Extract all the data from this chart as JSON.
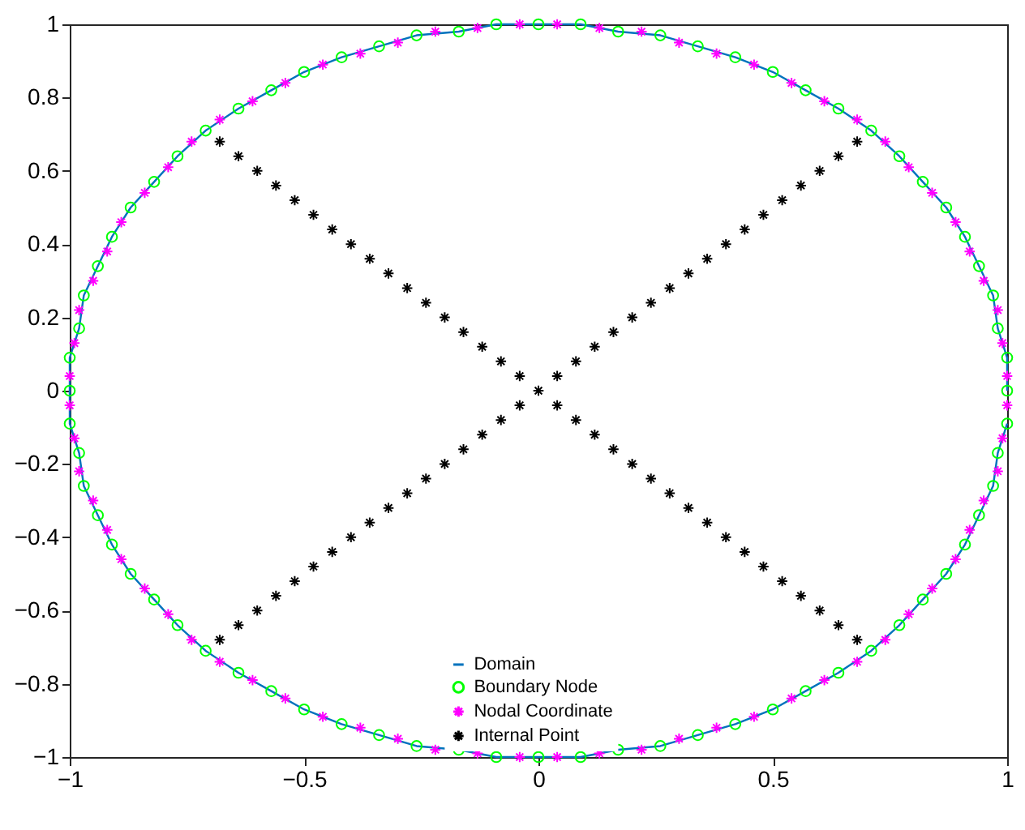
{
  "chart_data": {
    "type": "scatter",
    "xlim": [
      -1,
      1
    ],
    "ylim": [
      -1,
      1
    ],
    "xticks": [
      -1,
      -0.5,
      0,
      0.5,
      1
    ],
    "yticks": [
      -1,
      -0.8,
      -0.6,
      -0.4,
      -0.2,
      0,
      0.2,
      0.4,
      0.6,
      0.8,
      1
    ],
    "grid": false,
    "legend": "bottom",
    "series": [
      {
        "name": "Domain",
        "type": "line",
        "color": "#0072bd",
        "marker": "none",
        "x": [
          1,
          1,
          0.98,
          0.97,
          0.94,
          0.91,
          0.87,
          0.82,
          0.77,
          0.71,
          0.64,
          0.57,
          0.5,
          0.42,
          0.34,
          0.26,
          0.17,
          0.09,
          0,
          -0.09,
          -0.17,
          -0.26,
          -0.34,
          -0.42,
          -0.5,
          -0.57,
          -0.64,
          -0.71,
          -0.77,
          -0.82,
          -0.87,
          -0.91,
          -0.94,
          -0.97,
          -0.98,
          -1,
          -1,
          -1,
          -0.98,
          -0.97,
          -0.94,
          -0.91,
          -0.87,
          -0.82,
          -0.77,
          -0.71,
          -0.64,
          -0.57,
          -0.5,
          -0.42,
          -0.34,
          -0.26,
          -0.17,
          -0.09,
          0,
          0.09,
          0.17,
          0.26,
          0.34,
          0.42,
          0.5,
          0.57,
          0.64,
          0.71,
          0.77,
          0.82,
          0.87,
          0.91,
          0.94,
          0.97,
          0.98,
          1
        ],
        "values": [
          0,
          0.09,
          0.17,
          0.26,
          0.34,
          0.42,
          0.5,
          0.57,
          0.64,
          0.71,
          0.77,
          0.82,
          0.87,
          0.91,
          0.94,
          0.97,
          0.98,
          1,
          1,
          1,
          0.98,
          0.97,
          0.94,
          0.91,
          0.87,
          0.82,
          0.77,
          0.71,
          0.64,
          0.57,
          0.5,
          0.42,
          0.34,
          0.26,
          0.17,
          0.09,
          0,
          -0.09,
          -0.17,
          -0.26,
          -0.34,
          -0.42,
          -0.5,
          -0.57,
          -0.64,
          -0.71,
          -0.77,
          -0.82,
          -0.87,
          -0.91,
          -0.94,
          -0.97,
          -0.98,
          -1,
          -1,
          -1,
          -0.98,
          -0.97,
          -0.94,
          -0.91,
          -0.87,
          -0.82,
          -0.77,
          -0.71,
          -0.64,
          -0.57,
          -0.5,
          -0.42,
          -0.34,
          -0.26,
          -0.17,
          -0.09
        ]
      },
      {
        "name": "Boundary Node",
        "color": "#00ff00",
        "marker": "circle",
        "x": [
          1,
          1,
          0.98,
          0.97,
          0.94,
          0.91,
          0.87,
          0.82,
          0.77,
          0.71,
          0.64,
          0.57,
          0.5,
          0.42,
          0.34,
          0.26,
          0.17,
          0.09,
          0,
          -0.09,
          -0.17,
          -0.26,
          -0.34,
          -0.42,
          -0.5,
          -0.57,
          -0.64,
          -0.71,
          -0.77,
          -0.82,
          -0.87,
          -0.91,
          -0.94,
          -0.97,
          -0.98,
          -1,
          -1,
          -1,
          -0.98,
          -0.97,
          -0.94,
          -0.91,
          -0.87,
          -0.82,
          -0.77,
          -0.71,
          -0.64,
          -0.57,
          -0.5,
          -0.42,
          -0.34,
          -0.26,
          -0.17,
          -0.09,
          0,
          0.09,
          0.17,
          0.26,
          0.34,
          0.42,
          0.5,
          0.57,
          0.64,
          0.71,
          0.77,
          0.82,
          0.87,
          0.91,
          0.94,
          0.97,
          0.98,
          1
        ],
        "values": [
          0,
          0.09,
          0.17,
          0.26,
          0.34,
          0.42,
          0.5,
          0.57,
          0.64,
          0.71,
          0.77,
          0.82,
          0.87,
          0.91,
          0.94,
          0.97,
          0.98,
          1,
          1,
          1,
          0.98,
          0.97,
          0.94,
          0.91,
          0.87,
          0.82,
          0.77,
          0.71,
          0.64,
          0.57,
          0.5,
          0.42,
          0.34,
          0.26,
          0.17,
          0.09,
          0,
          -0.09,
          -0.17,
          -0.26,
          -0.34,
          -0.42,
          -0.5,
          -0.57,
          -0.64,
          -0.71,
          -0.77,
          -0.82,
          -0.87,
          -0.91,
          -0.94,
          -0.97,
          -0.98,
          -1,
          -1,
          -1,
          -0.98,
          -0.97,
          -0.94,
          -0.91,
          -0.87,
          -0.82,
          -0.77,
          -0.71,
          -0.64,
          -0.57,
          -0.5,
          -0.42,
          -0.34,
          -0.26,
          -0.17,
          -0.09
        ]
      },
      {
        "name": "Nodal Coordinate",
        "color": "#ff00ff",
        "marker": "cross",
        "x": [
          1,
          0.99,
          0.98,
          0.95,
          0.92,
          0.89,
          0.84,
          0.79,
          0.74,
          0.68,
          0.61,
          0.54,
          0.46,
          0.38,
          0.3,
          0.22,
          0.13,
          0.04,
          -0.04,
          -0.13,
          -0.22,
          -0.3,
          -0.38,
          -0.46,
          -0.54,
          -0.61,
          -0.68,
          -0.74,
          -0.79,
          -0.84,
          -0.89,
          -0.92,
          -0.95,
          -0.98,
          -0.99,
          -1,
          -1,
          -0.99,
          -0.98,
          -0.95,
          -0.92,
          -0.89,
          -0.84,
          -0.79,
          -0.74,
          -0.68,
          -0.61,
          -0.54,
          -0.46,
          -0.38,
          -0.3,
          -0.22,
          -0.13,
          -0.04,
          0.04,
          0.13,
          0.22,
          0.3,
          0.38,
          0.46,
          0.54,
          0.61,
          0.68,
          0.74,
          0.79,
          0.84,
          0.89,
          0.92,
          0.95,
          0.98,
          0.99,
          1
        ],
        "values": [
          0.04,
          0.13,
          0.22,
          0.3,
          0.38,
          0.46,
          0.54,
          0.61,
          0.68,
          0.74,
          0.79,
          0.84,
          0.89,
          0.92,
          0.95,
          0.98,
          0.99,
          1,
          1,
          0.99,
          0.98,
          0.95,
          0.92,
          0.89,
          0.84,
          0.79,
          0.74,
          0.68,
          0.61,
          0.54,
          0.46,
          0.38,
          0.3,
          0.22,
          0.13,
          0.04,
          -0.04,
          -0.13,
          -0.22,
          -0.3,
          -0.38,
          -0.46,
          -0.54,
          -0.61,
          -0.68,
          -0.74,
          -0.79,
          -0.84,
          -0.89,
          -0.92,
          -0.95,
          -0.98,
          -0.99,
          -1,
          -1,
          -0.99,
          -0.98,
          -0.95,
          -0.92,
          -0.89,
          -0.84,
          -0.79,
          -0.74,
          -0.68,
          -0.61,
          -0.54,
          -0.46,
          -0.38,
          -0.3,
          -0.22,
          -0.13,
          -0.04
        ]
      },
      {
        "name": "Internal Point",
        "color": "#000000",
        "marker": "cross",
        "x": [
          -0.68,
          -0.64,
          -0.6,
          -0.56,
          -0.52,
          -0.48,
          -0.44,
          -0.4,
          -0.36,
          -0.32,
          -0.28,
          -0.24,
          -0.2,
          -0.16,
          -0.12,
          -0.08,
          -0.04,
          0,
          0.04,
          0.08,
          0.12,
          0.16,
          0.2,
          0.24,
          0.28,
          0.32,
          0.36,
          0.4,
          0.44,
          0.48,
          0.52,
          0.56,
          0.6,
          0.64,
          0.68,
          -0.68,
          -0.64,
          -0.6,
          -0.56,
          -0.52,
          -0.48,
          -0.44,
          -0.4,
          -0.36,
          -0.32,
          -0.28,
          -0.24,
          -0.2,
          -0.16,
          -0.12,
          -0.08,
          -0.04,
          0.04,
          0.08,
          0.12,
          0.16,
          0.2,
          0.24,
          0.28,
          0.32,
          0.36,
          0.4,
          0.44,
          0.48,
          0.52,
          0.56,
          0.6,
          0.64,
          0.68
        ],
        "values": [
          -0.68,
          -0.64,
          -0.6,
          -0.56,
          -0.52,
          -0.48,
          -0.44,
          -0.4,
          -0.36,
          -0.32,
          -0.28,
          -0.24,
          -0.2,
          -0.16,
          -0.12,
          -0.08,
          -0.04,
          0,
          0.04,
          0.08,
          0.12,
          0.16,
          0.2,
          0.24,
          0.28,
          0.32,
          0.36,
          0.4,
          0.44,
          0.48,
          0.52,
          0.56,
          0.6,
          0.64,
          0.68,
          0.68,
          0.64,
          0.6,
          0.56,
          0.52,
          0.48,
          0.44,
          0.4,
          0.36,
          0.32,
          0.28,
          0.24,
          0.2,
          0.16,
          0.12,
          0.08,
          0.04,
          -0.04,
          -0.08,
          -0.12,
          -0.16,
          -0.2,
          -0.24,
          -0.28,
          -0.32,
          -0.36,
          -0.4,
          -0.44,
          -0.48,
          -0.52,
          -0.56,
          -0.6,
          -0.64,
          -0.68
        ]
      }
    ]
  }
}
